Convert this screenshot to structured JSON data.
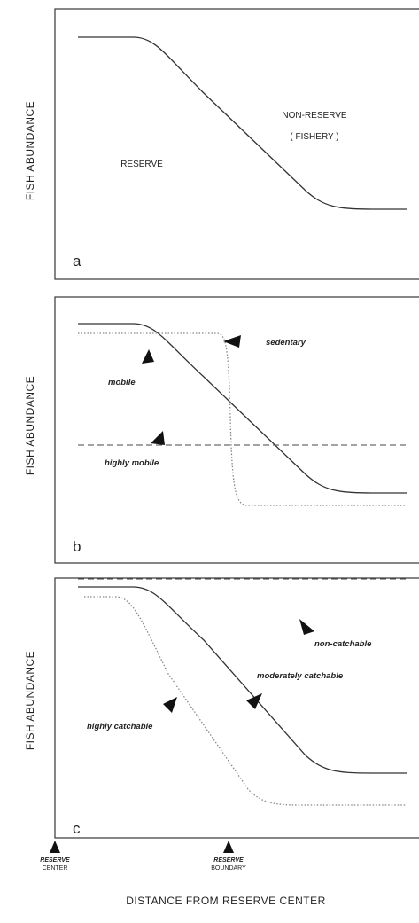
{
  "y_axis_label": "FISH ABUNDANCE",
  "panels": [
    {
      "label": "a",
      "texts": [
        "RESERVE",
        "NON-RESERVE",
        "( FISHERY )"
      ]
    },
    {
      "label": "b",
      "texts": [
        "sedentary",
        "mobile",
        "highly mobile"
      ]
    },
    {
      "label": "c",
      "texts": [
        "non-catchable",
        "moderately catchable",
        "highly catchable"
      ]
    }
  ],
  "x_axis": {
    "title": "DISTANCE FROM RESERVE CENTER",
    "markers": [
      {
        "line1": "RESERVE",
        "line2": "CENTER"
      },
      {
        "line1": "RESERVE",
        "line2": "BOUNDARY"
      }
    ]
  }
}
